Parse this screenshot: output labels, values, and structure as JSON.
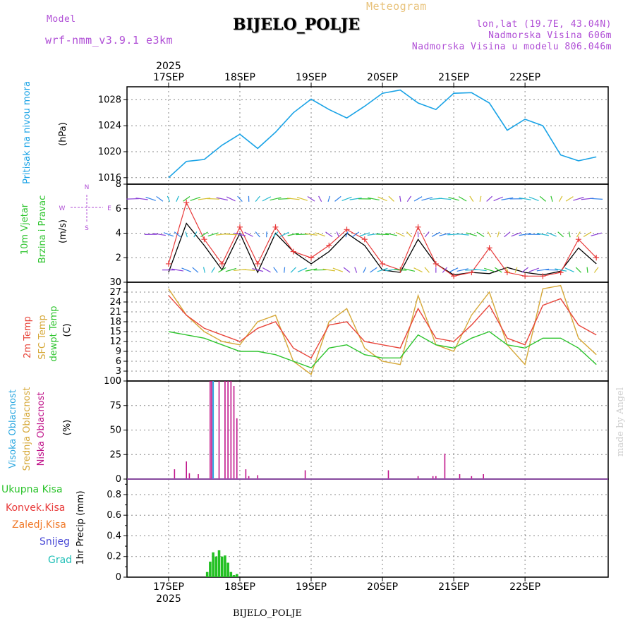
{
  "header": {
    "model_label": "Model",
    "model_name": "wrf-nmm_v3.9.1  e3km",
    "chart_kind": "Meteogram",
    "station": "BIJELO_POLJE",
    "lonlat": "lon,lat (19.7E, 43.04N)",
    "elevation": "Nadmorska Visina 606m",
    "model_elevation": "Nadmorska Visina u modelu 806.046m"
  },
  "footer": {
    "station": "BIJELO_POLJE",
    "watermark": "made by Angel"
  },
  "colors": {
    "pressure": "#1aa3e6",
    "wind_black": "#000000",
    "wind_red": "#e83a3a",
    "t2m": "#e8453a",
    "sfc": "#d6a838",
    "dew": "#2ec42e",
    "cloud_high": "#2aa7e0",
    "cloud_mid": "#d6a838",
    "cloud_low": "#c0148a",
    "rain": "#22c022",
    "conv": "#e83a3a",
    "frozen": "#f07a2a",
    "snow": "#4a4ad6",
    "grad": "#22c0b8"
  },
  "chart_data": [
    {
      "type": "line",
      "panel": "pressure",
      "title": "Pritisak na nivou mora",
      "ylabel": "(hPa)",
      "yticks": [
        "1016",
        "1020",
        "1024",
        "1028"
      ],
      "ylim": [
        1015,
        1030
      ],
      "top_year": "2025",
      "x_tick_labels": [
        "17SEP",
        "18SEP",
        "19SEP",
        "20SEP",
        "21SEP",
        "22SEP"
      ],
      "x_hours": [
        0,
        6,
        12,
        18,
        24,
        30,
        36,
        42,
        48,
        54,
        60,
        66,
        72,
        78,
        84,
        90,
        96,
        102,
        108,
        114,
        120,
        126,
        132,
        138,
        144
      ],
      "series": [
        {
          "name": "Pritisak",
          "values": [
            1016.0,
            1018.5,
            1018.8,
            1021.0,
            1022.7,
            1020.5,
            1023.0,
            1026.0,
            1028.1,
            1026.5,
            1025.2,
            1027.0,
            1029.0,
            1029.5,
            1027.5,
            1026.5,
            1029.0,
            1029.1,
            1027.5,
            1023.3,
            1025.0,
            1024.0,
            1019.5,
            1018.6,
            1019.2
          ]
        }
      ]
    },
    {
      "type": "line",
      "panel": "wind",
      "title": "10m Vjetar",
      "subtitle": "Brzina i Pravac",
      "ylabel": "(m/s)",
      "direction_key": [
        "N",
        "W",
        "E",
        "S"
      ],
      "yticks": [
        "0",
        "2",
        "4",
        "6",
        "8"
      ],
      "ylim": [
        0,
        8
      ],
      "series": [
        {
          "name": "Brzina",
          "values": [
            0.8,
            4.8,
            3.0,
            1.0,
            4.0,
            0.8,
            4.0,
            2.5,
            1.5,
            2.5,
            4.0,
            3.0,
            1.0,
            0.8,
            3.5,
            1.5,
            0.6,
            0.8,
            0.7,
            1.2,
            0.8,
            0.6,
            0.9,
            2.8,
            1.5
          ]
        },
        {
          "name": "Udari",
          "values": [
            1.5,
            6.5,
            3.5,
            1.5,
            4.5,
            1.5,
            4.5,
            2.5,
            2.0,
            3.0,
            4.3,
            3.5,
            1.5,
            1.0,
            4.5,
            1.5,
            0.5,
            0.8,
            2.8,
            0.8,
            0.5,
            0.5,
            0.8,
            3.5,
            2.0
          ]
        }
      ]
    },
    {
      "type": "line",
      "panel": "temperature",
      "title": "2m Temp",
      "subtitle": "SFC Temp",
      "subtitle2": "dewpt Temp",
      "ylabel": "(C)",
      "yticks": [
        "0",
        "3",
        "6",
        "9",
        "12",
        "15",
        "18",
        "21",
        "24",
        "27",
        "30"
      ],
      "ylim": [
        0,
        30
      ],
      "series": [
        {
          "name": "2m Temp",
          "values": [
            26,
            20,
            16,
            14,
            12,
            16,
            18,
            10,
            7,
            17,
            18,
            12,
            11,
            10,
            22,
            13,
            12,
            17,
            23,
            13,
            11,
            23,
            25,
            17,
            14
          ]
        },
        {
          "name": "SFC Temp",
          "values": [
            28,
            20,
            15,
            12,
            11,
            18,
            20,
            6,
            2,
            18,
            22,
            10,
            6,
            5,
            26,
            11,
            9,
            20,
            27,
            11,
            5,
            28,
            29,
            13,
            8
          ]
        },
        {
          "name": "dewpt Temp",
          "values": [
            15,
            14,
            13,
            11,
            9,
            9,
            8,
            6,
            4,
            10,
            11,
            8,
            7,
            7,
            14,
            11,
            10,
            13,
            15,
            11,
            10,
            13,
            13,
            10,
            5
          ]
        }
      ]
    },
    {
      "type": "bar",
      "panel": "cloud",
      "title": "Visoka Oblacnost",
      "subtitle": "Srednja Oblacnost",
      "subtitle2": "Niska Oblacnost",
      "ylabel": "(%)",
      "yticks": [
        "0",
        "25",
        "50",
        "75",
        "100"
      ],
      "ylim": [
        0,
        100
      ],
      "series": [
        {
          "name": "Niska Oblacnost",
          "x": [
            2,
            6,
            7,
            10,
            14,
            14.5,
            17,
            19,
            20,
            21,
            22,
            23,
            26,
            27,
            30,
            46,
            74,
            84,
            89,
            90,
            93,
            98,
            102,
            106
          ],
          "values": [
            10,
            18,
            6,
            5,
            100,
            100,
            100,
            100,
            100,
            100,
            95,
            62,
            10,
            3,
            4,
            9,
            9,
            3,
            3,
            3,
            26,
            5,
            3,
            5
          ]
        },
        {
          "name": "Visoka Oblacnost",
          "x": [
            15
          ],
          "values": [
            100
          ]
        }
      ]
    },
    {
      "type": "bar",
      "panel": "precip",
      "title": "Ukupna Kisa",
      "legend": [
        "Ukupna Kisa",
        "Konvek.Kisa",
        "Zaledj.Kisa",
        "Snijeg",
        "Grad"
      ],
      "ylabel": "1hr Precip (mm)",
      "yticks": [
        "0",
        "0.2",
        "0.4",
        "0.6",
        "0.8"
      ],
      "ylim": [
        0,
        0.95
      ],
      "bottom_year": "2025",
      "series": [
        {
          "name": "Ukupna Kisa",
          "x": [
            13,
            14,
            15,
            16,
            17,
            18,
            19,
            20,
            21,
            22,
            23
          ],
          "values": [
            0.05,
            0.15,
            0.24,
            0.2,
            0.26,
            0.2,
            0.21,
            0.14,
            0.05,
            0.02,
            0.03
          ]
        }
      ]
    }
  ]
}
